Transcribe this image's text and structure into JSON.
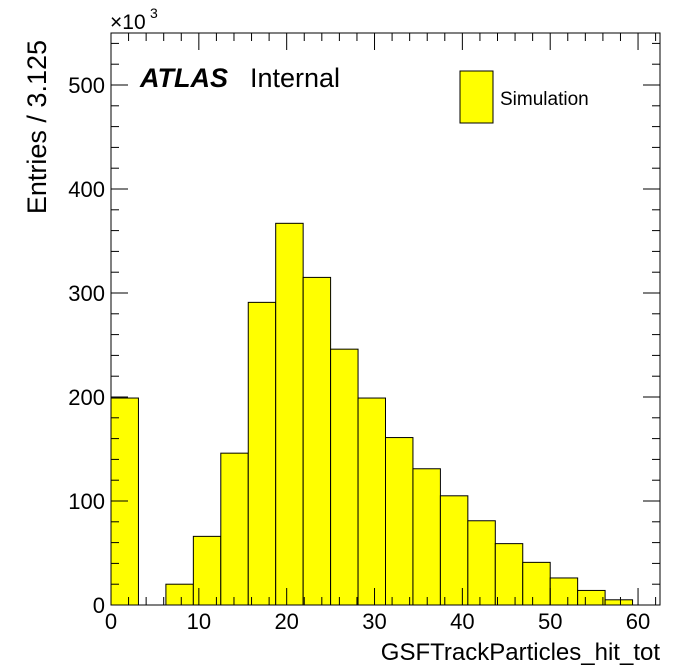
{
  "chart_data": {
    "type": "bar",
    "title": "",
    "xlabel": "GSFTrackParticles_hit_tot",
    "ylabel": "Entries / 3.125",
    "y_multiplier": "×10",
    "y_multiplier_exp": "3",
    "xlim": [
      0,
      62.5
    ],
    "ylim": [
      0,
      550
    ],
    "x_ticks": [
      "0",
      "10",
      "20",
      "30",
      "40",
      "50",
      "60"
    ],
    "y_ticks": [
      "0",
      "100",
      "200",
      "300",
      "400",
      "500"
    ],
    "bin_width": 3.125,
    "bin_edges": [
      0,
      3.125,
      6.25,
      9.375,
      12.5,
      15.625,
      18.75,
      21.875,
      25,
      28.125,
      31.25,
      34.375,
      37.5,
      40.625,
      43.75,
      46.875,
      50,
      53.125,
      56.25,
      59.375,
      62.5
    ],
    "values": [
      199,
      0,
      20,
      66,
      146,
      291,
      367,
      315,
      246,
      199,
      161,
      131,
      105,
      81,
      59,
      41,
      26,
      14,
      5,
      0
    ],
    "series": [
      {
        "name": "Simulation",
        "color": "#ffff00"
      }
    ],
    "legend_position": "top-right",
    "grid": false
  },
  "labels": {
    "atlas": "ATLAS",
    "internal": "Internal"
  },
  "colors": {
    "fill": "#ffff00",
    "line": "#000000"
  }
}
